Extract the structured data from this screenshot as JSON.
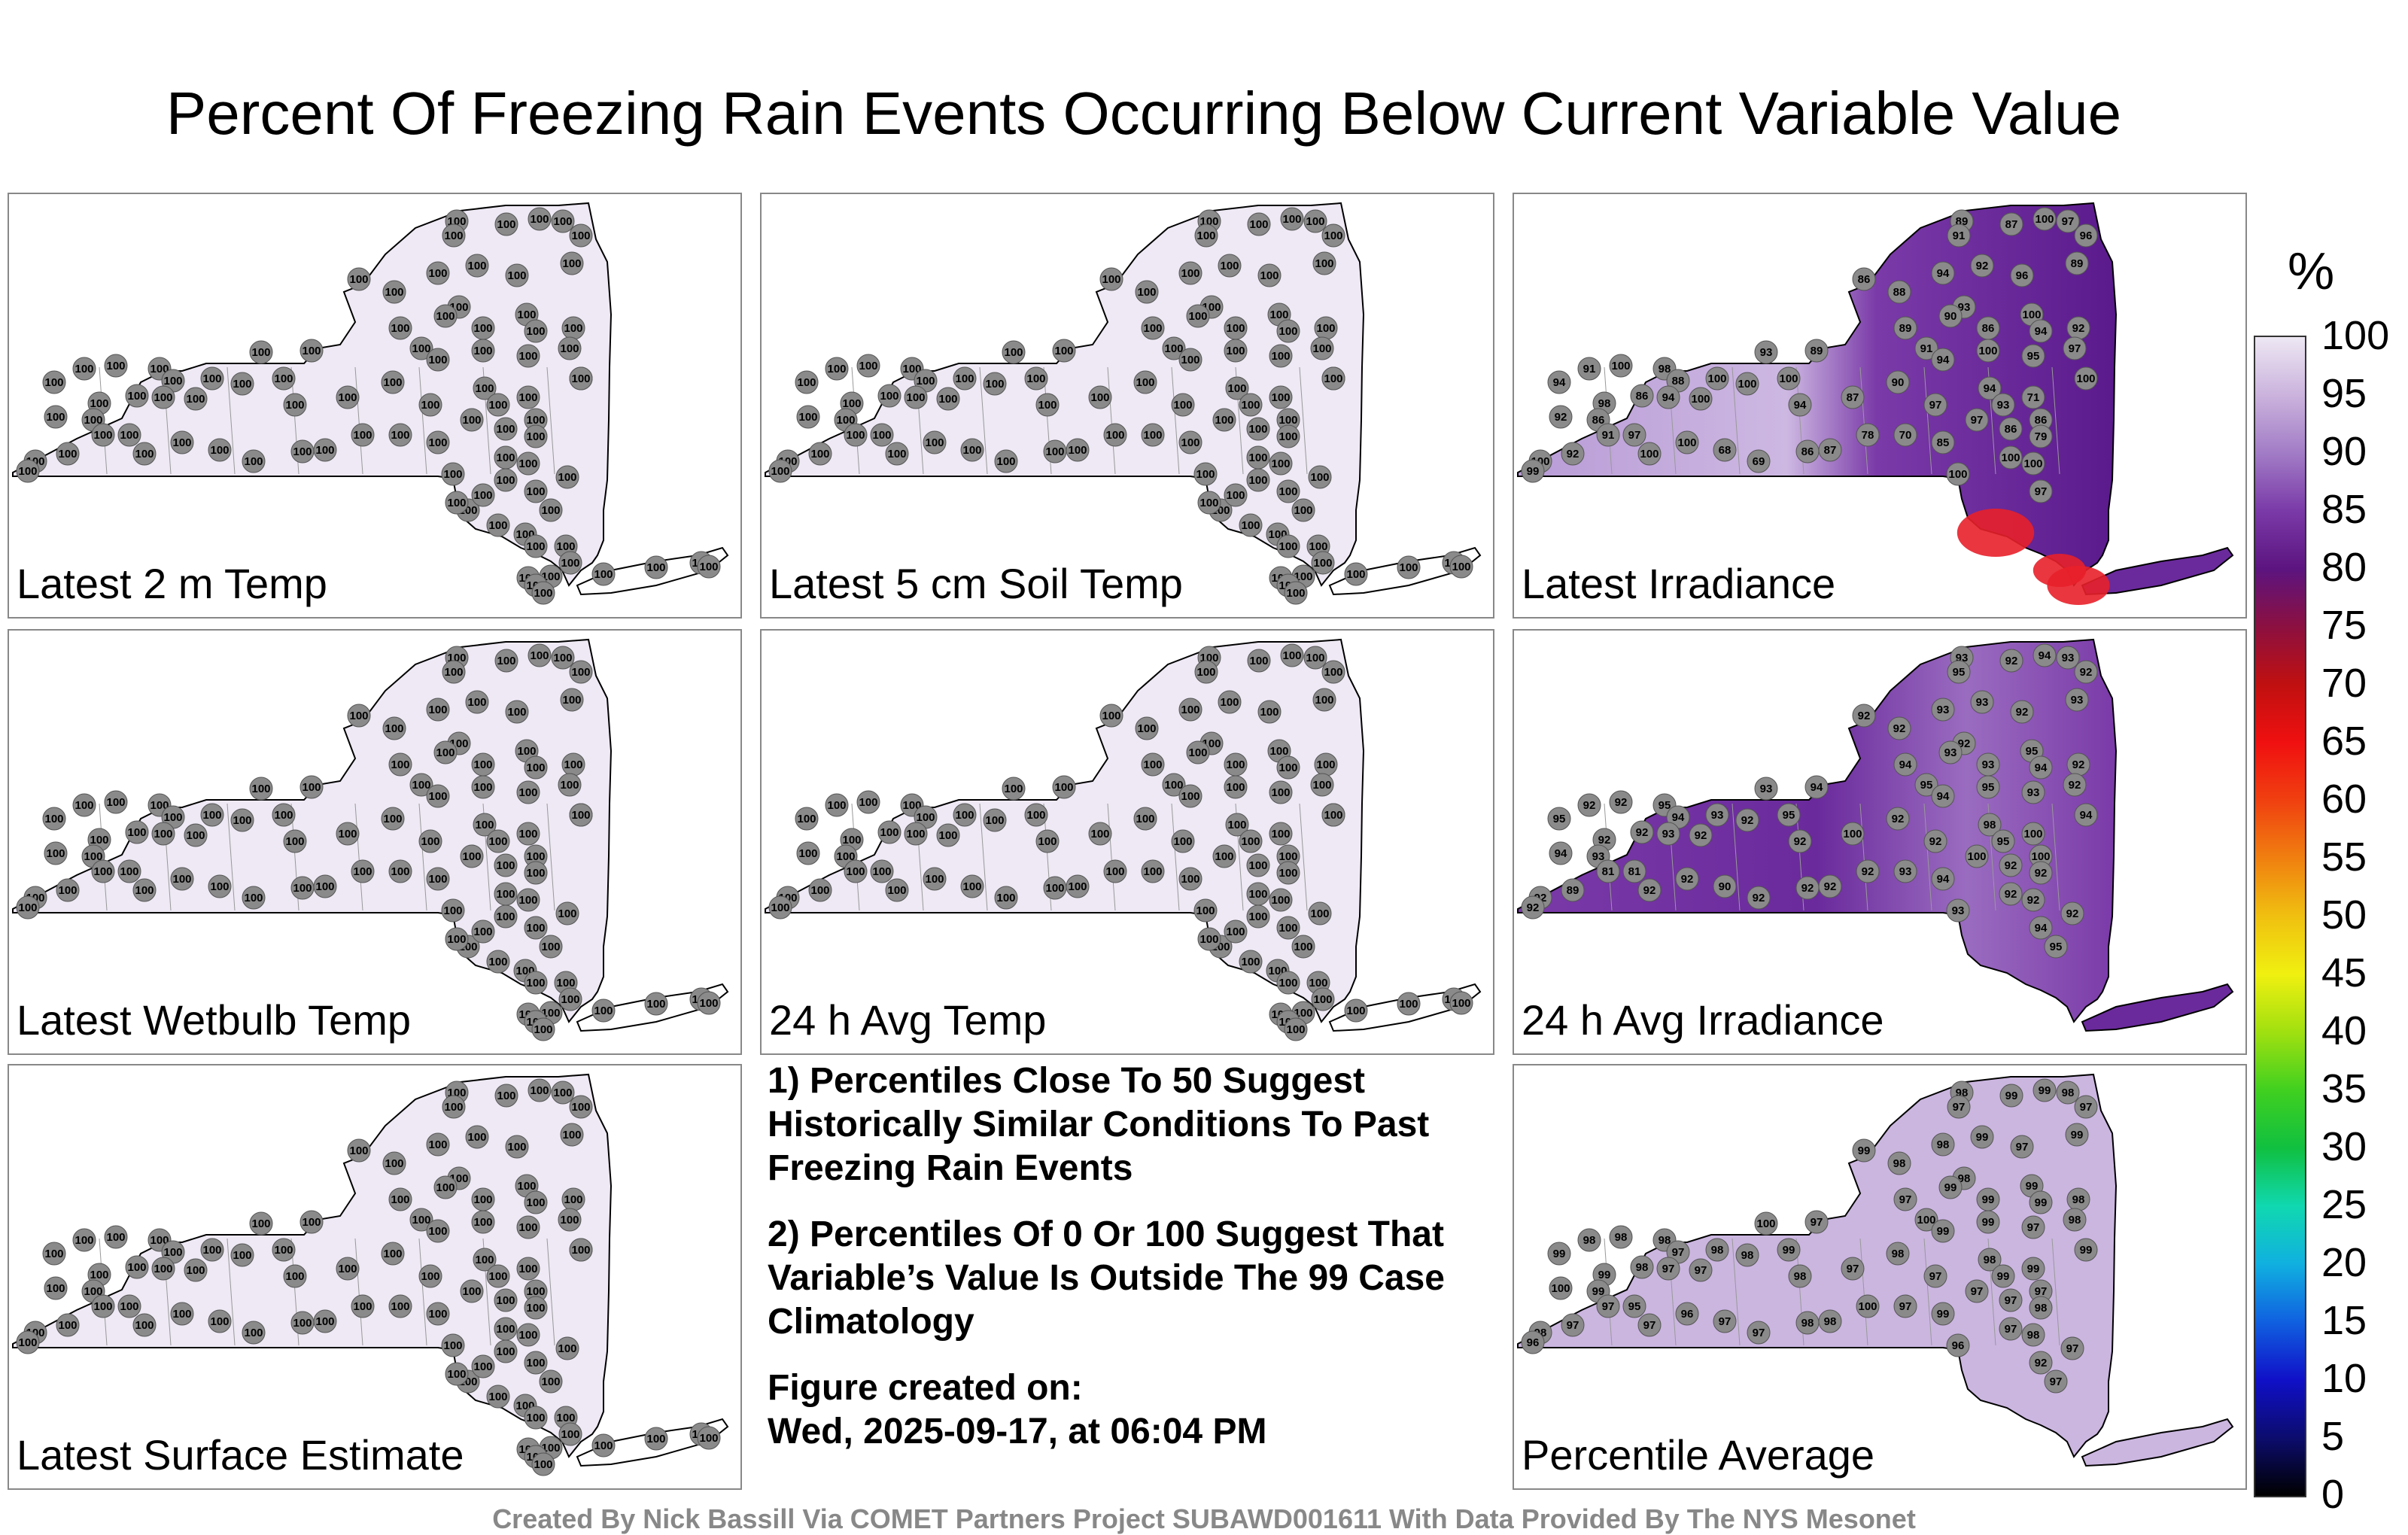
{
  "title": "Percent Of Freezing Rain Events Occurring Below Current Variable Value",
  "panels": [
    {
      "label": "Latest 2 m Temp",
      "mode": "uniform",
      "value": "100"
    },
    {
      "label": "Latest 5 cm Soil Temp",
      "mode": "uniform",
      "value": "100"
    },
    {
      "label": "Latest Irradiance",
      "mode": "irradiance",
      "values": [
        "100",
        "97",
        "96",
        "89",
        "91",
        "87",
        "94",
        "92",
        "96",
        "89",
        "86",
        "88",
        "93",
        "89",
        "90",
        "91",
        "86",
        "100",
        "94",
        "92",
        "89",
        "93",
        "100",
        "94",
        "95",
        "97",
        "100",
        "100",
        "98",
        "88",
        "100",
        "100",
        "100",
        "100",
        "94",
        "86",
        "98",
        "91",
        "94",
        "92",
        "86",
        "94",
        "87",
        "90",
        "97",
        "94",
        "93",
        "71",
        "86",
        "79",
        "86",
        "97",
        "85",
        "70",
        "78",
        "87",
        "86",
        "69",
        "68",
        "100",
        "100",
        "97",
        "91",
        "92",
        "100",
        "99",
        "100",
        "100",
        "100",
        "97"
      ]
    },
    {
      "label": "Latest Wetbulb Temp",
      "mode": "uniform",
      "value": "100"
    },
    {
      "label": "24 h Avg Temp",
      "mode": "uniform",
      "value": "100"
    },
    {
      "label": "24 h Avg Irradiance",
      "mode": "avgirr",
      "values": [
        "94",
        "93",
        "92",
        "93",
        "95",
        "92",
        "93",
        "93",
        "92",
        "93",
        "92",
        "92",
        "92",
        "94",
        "93",
        "95",
        "93",
        "95",
        "94",
        "92",
        "94",
        "93",
        "95",
        "94",
        "93",
        "92",
        "94",
        "92",
        "95",
        "94",
        "93",
        "92",
        "95",
        "92",
        "93",
        "92",
        "92",
        "92",
        "95",
        "94",
        "93",
        "92",
        "100",
        "92",
        "92",
        "98",
        "95",
        "100",
        "100",
        "92",
        "92",
        "100",
        "94",
        "93",
        "92",
        "92",
        "92",
        "92",
        "90",
        "92",
        "92",
        "81",
        "81",
        "89",
        "92",
        "92",
        "93",
        "92",
        "92",
        "94",
        "92",
        "95"
      ]
    },
    {
      "label": "Latest Surface Estimate",
      "mode": "uniform",
      "value": "100"
    },
    {
      "label": "Percentile Average",
      "mode": "average",
      "values": [
        "99",
        "98",
        "97",
        "98",
        "97",
        "99",
        "98",
        "99",
        "97",
        "99",
        "99",
        "98",
        "98",
        "97",
        "99",
        "100",
        "99",
        "99",
        "99",
        "98",
        "97",
        "100",
        "99",
        "99",
        "97",
        "98",
        "99",
        "98",
        "98",
        "97",
        "98",
        "98",
        "99",
        "97",
        "97",
        "98",
        "99",
        "98",
        "99",
        "100",
        "99",
        "98",
        "97",
        "98",
        "97",
        "98",
        "99",
        "99",
        "97",
        "98",
        "97",
        "97",
        "99",
        "97",
        "100",
        "98",
        "98",
        "97",
        "97",
        "96",
        "97",
        "95",
        "97",
        "97",
        "98",
        "96",
        "96",
        "97",
        "98",
        "92",
        "97",
        "97"
      ]
    }
  ],
  "notes": {
    "note1": "1) Percentiles Close To 50 Suggest Historically Similar Conditions To Past Freezing Rain Events",
    "note2": "2) Percentiles Of 0 Or 100 Suggest That Variable’s Value Is Outside The 99 Case Climatology",
    "created_label": "Figure created on:",
    "created_date": "Wed, 2025-09-17, at 06:04 PM"
  },
  "colorbar": {
    "unit": "%",
    "ticks": [
      "100",
      "95",
      "90",
      "85",
      "80",
      "75",
      "70",
      "65",
      "60",
      "55",
      "50",
      "45",
      "40",
      "35",
      "30",
      "25",
      "20",
      "15",
      "10",
      "5",
      "0"
    ],
    "stops": [
      "#000000",
      "#0c0c6e",
      "#1010c8",
      "#1060e0",
      "#10b0e0",
      "#10d8b0",
      "#10c040",
      "#40d020",
      "#a0e010",
      "#f0f010",
      "#f0c010",
      "#f08010",
      "#f04010",
      "#f01010",
      "#c01010",
      "#8c1040",
      "#5c1480",
      "#7a3aa8",
      "#a27cc6",
      "#cbb3dd",
      "#ede7f3"
    ]
  },
  "credit": "Created By Nick Bassill Via COMET Partners Project SUBAWD001611 With Data Provided By The NYS Mesonet"
}
